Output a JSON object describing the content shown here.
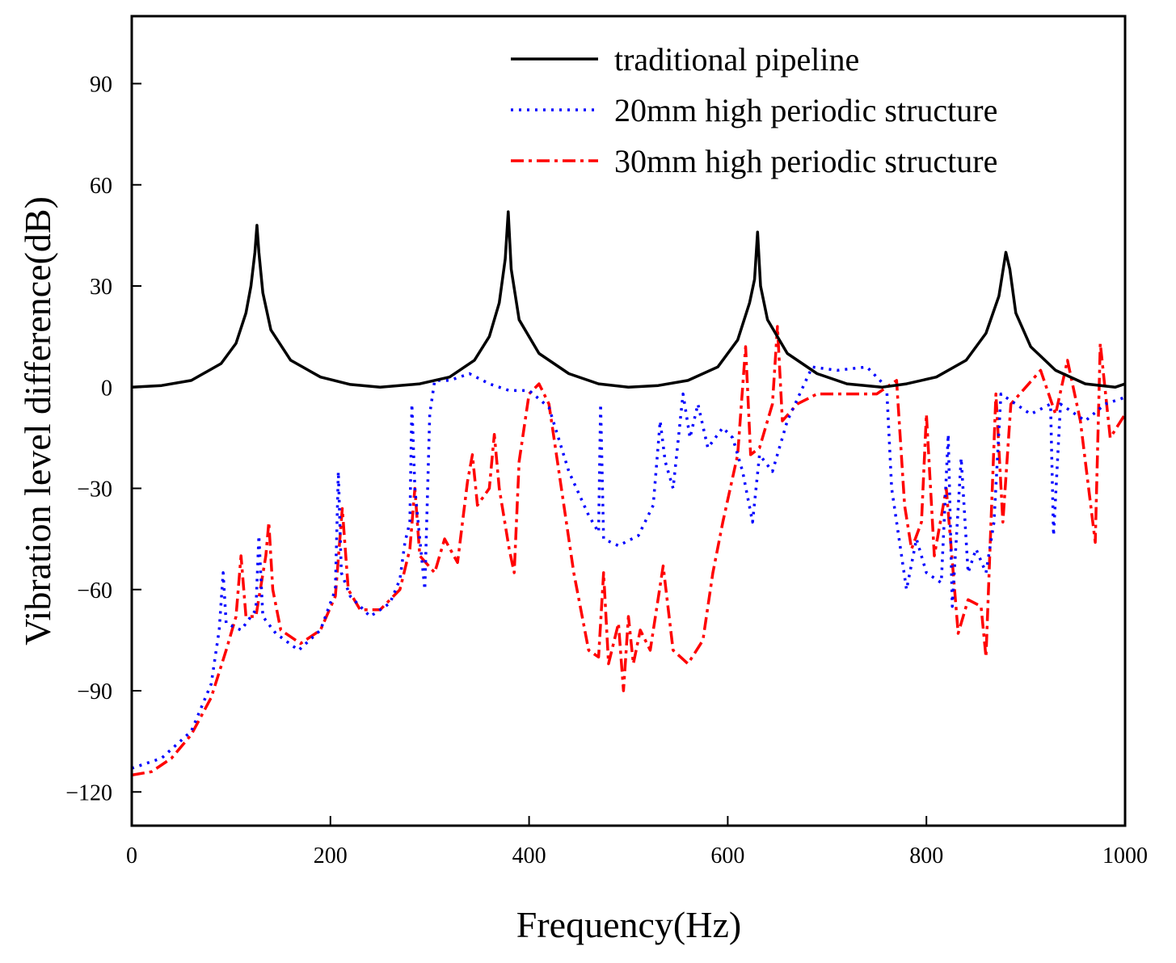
{
  "chart_data": {
    "type": "line",
    "xlabel": "Frequency(Hz)",
    "ylabel": "Vibration level difference(dB)",
    "xlim": [
      0,
      1000
    ],
    "ylim": [
      -130,
      110
    ],
    "xticks": [
      0,
      200,
      400,
      600,
      800,
      1000
    ],
    "yticks": [
      {
        "value": -120,
        "label": "−120"
      },
      {
        "value": -90,
        "label": "−90"
      },
      {
        "value": -60,
        "label": "−60"
      },
      {
        "value": -30,
        "label": "−30"
      },
      0,
      30,
      60,
      90
    ],
    "legend": "upper right",
    "series": [
      {
        "name": "traditional pipeline",
        "color": "#000000",
        "linestyle": "solid",
        "x": [
          0,
          30,
          60,
          90,
          105,
          115,
          120,
          124,
          126,
          128,
          132,
          140,
          160,
          190,
          220,
          250,
          290,
          320,
          345,
          360,
          370,
          376,
          379,
          382,
          390,
          410,
          440,
          470,
          500,
          530,
          560,
          590,
          610,
          622,
          627,
          630,
          633,
          640,
          660,
          690,
          720,
          755,
          780,
          810,
          840,
          860,
          873,
          880,
          884,
          890,
          905,
          930,
          960,
          990,
          1000
        ],
        "values": [
          0,
          0.5,
          2,
          7,
          13,
          22,
          30,
          40,
          48,
          40,
          28,
          17,
          8,
          3,
          0.8,
          0,
          1,
          3,
          8,
          15,
          25,
          38,
          52,
          35,
          20,
          10,
          4,
          1,
          0,
          0.5,
          2,
          6,
          14,
          25,
          32,
          46,
          30,
          20,
          10,
          4,
          1,
          0,
          1,
          3,
          8,
          16,
          27,
          40,
          35,
          22,
          12,
          5,
          1,
          0,
          1
        ]
      },
      {
        "name": "20mm high periodic structure",
        "color": "#0000ff",
        "linestyle": "dotted",
        "x": [
          0,
          30,
          60,
          80,
          88,
          92,
          95,
          110,
          125,
          128,
          132,
          145,
          168,
          190,
          205,
          208,
          211,
          220,
          240,
          260,
          270,
          275,
          280,
          282,
          285,
          290,
          295,
          300,
          305,
          320,
          340,
          360,
          380,
          400,
          420,
          440,
          460,
          470,
          472,
          475,
          490,
          510,
          525,
          532,
          537,
          545,
          555,
          562,
          570,
          580,
          595,
          605,
          615,
          625,
          632,
          645,
          660,
          685,
          710,
          740,
          760,
          765,
          780,
          790,
          800,
          815,
          822,
          826,
          835,
          842,
          850,
          860,
          868,
          875,
          890,
          905,
          925,
          928,
          935,
          960,
          980,
          1000
        ],
        "values": [
          -113,
          -110,
          -102,
          -88,
          -72,
          -55,
          -70,
          -72,
          -66,
          -44,
          -68,
          -73,
          -78,
          -72,
          -60,
          -25,
          -55,
          -62,
          -68,
          -64,
          -57,
          -46,
          -40,
          -5,
          -30,
          -45,
          -60,
          -8,
          2,
          2,
          4,
          1,
          -1,
          -1,
          -6,
          -25,
          -38,
          -43,
          -5,
          -45,
          -47,
          -44,
          -35,
          -10,
          -22,
          -30,
          -2,
          -15,
          -5,
          -18,
          -12,
          -15,
          -25,
          -40,
          -20,
          -25,
          -10,
          6,
          5,
          6,
          0,
          -30,
          -60,
          -45,
          -55,
          -58,
          -14,
          -65,
          -21,
          -55,
          -48,
          -55,
          -40,
          -2,
          -5,
          -8,
          -5,
          -44,
          -5,
          -10,
          -5,
          -3
        ]
      },
      {
        "name": "30mm high periodic structure",
        "color": "#ff0000",
        "linestyle": "dashdot",
        "x": [
          0,
          20,
          40,
          60,
          80,
          95,
          105,
          110,
          115,
          125,
          135,
          138,
          142,
          150,
          170,
          190,
          205,
          212,
          218,
          230,
          250,
          270,
          280,
          285,
          290,
          305,
          315,
          328,
          338,
          343,
          348,
          360,
          365,
          370,
          380,
          385,
          390,
          400,
          410,
          420,
          430,
          445,
          460,
          470,
          475,
          480,
          490,
          495,
          500,
          505,
          512,
          522,
          535,
          545,
          560,
          575,
          585,
          595,
          610,
          618,
          623,
          632,
          645,
          650,
          655,
          670,
          690,
          720,
          750,
          770,
          778,
          785,
          795,
          800,
          808,
          820,
          832,
          842,
          855,
          860,
          865,
          870,
          877,
          885,
          900,
          915,
          930,
          942,
          955,
          970,
          975,
          985,
          1000
        ],
        "values": [
          -115,
          -114,
          -110,
          -103,
          -92,
          -78,
          -68,
          -50,
          -68,
          -68,
          -50,
          -40,
          -60,
          -72,
          -76,
          -72,
          -62,
          -36,
          -60,
          -66,
          -66,
          -60,
          -48,
          -30,
          -50,
          -55,
          -45,
          -52,
          -28,
          -20,
          -35,
          -30,
          -14,
          -30,
          -48,
          -55,
          -22,
          -2,
          1,
          -5,
          -25,
          -55,
          -78,
          -80,
          -55,
          -82,
          -70,
          -90,
          -68,
          -82,
          -72,
          -78,
          -53,
          -78,
          -82,
          -75,
          -55,
          -40,
          -20,
          12,
          -20,
          -18,
          -5,
          18,
          -10,
          -5,
          -2,
          -2,
          -2,
          2,
          -35,
          -48,
          -40,
          -8,
          -50,
          -30,
          -73,
          -63,
          -65,
          -80,
          -40,
          -2,
          -40,
          -5,
          0,
          5,
          -8,
          8,
          -10,
          -46,
          13,
          -15,
          -8
        ]
      }
    ]
  }
}
